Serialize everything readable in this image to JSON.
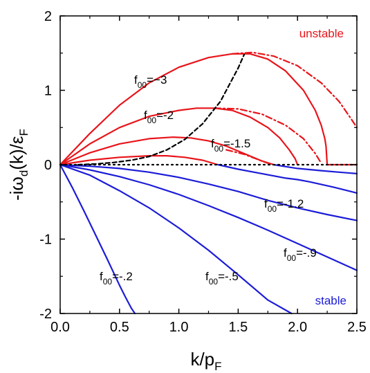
{
  "chart_data": {
    "type": "line",
    "xlim": [
      0,
      2.5
    ],
    "ylim": [
      -2,
      2
    ],
    "x_ticks": [
      "0.0",
      "0.5",
      "1.0",
      "1.5",
      "2.0",
      "2.5"
    ],
    "y_ticks": [
      "-2",
      "-1",
      "0",
      "1",
      "2"
    ],
    "xlabel": {
      "main": "k/p",
      "sub": "F"
    },
    "ylabel": {
      "pre": "-i",
      "omega": "ω",
      "sub": "d",
      "mid": "(k)/",
      "eps": "ε",
      "eps_sub": "F"
    },
    "region_labels": {
      "unstable": "unstable",
      "stable": "stable"
    },
    "colors": {
      "unstable": "#e8141a",
      "stable": "#1c1cd8",
      "reference": "#000000"
    },
    "grid": false,
    "series": [
      {
        "label": {
          "pre": "f",
          "sub": "00",
          "post": "=−3"
        },
        "color": "#e8141a",
        "style": "solid",
        "x": [
          0,
          0.25,
          0.5,
          0.75,
          1.0,
          1.25,
          1.45,
          1.6,
          1.75,
          1.9,
          2.05,
          2.15,
          2.2,
          2.23,
          2.24,
          2.25,
          2.5
        ],
        "y": [
          0,
          0.42,
          0.8,
          1.1,
          1.31,
          1.44,
          1.49,
          1.49,
          1.42,
          1.26,
          1.0,
          0.73,
          0.53,
          0.35,
          0.25,
          0,
          0
        ]
      },
      {
        "color": "#e8141a",
        "style": "dashdot",
        "x": [
          1.45,
          1.62,
          1.8,
          2.0,
          2.2,
          2.35,
          2.45,
          2.5
        ],
        "y": [
          1.49,
          1.51,
          1.46,
          1.33,
          1.1,
          0.85,
          0.62,
          0.5
        ]
      },
      {
        "label": {
          "pre": "f",
          "sub": "00",
          "post": "=-2"
        },
        "color": "#e8141a",
        "style": "solid",
        "x": [
          0,
          0.25,
          0.5,
          0.75,
          1.0,
          1.15,
          1.3,
          1.45,
          1.6,
          1.75,
          1.85,
          1.93,
          1.98,
          2.0
        ],
        "y": [
          0,
          0.28,
          0.5,
          0.65,
          0.73,
          0.76,
          0.76,
          0.73,
          0.64,
          0.5,
          0.36,
          0.2,
          0.08,
          0
        ]
      },
      {
        "color": "#e8141a",
        "style": "dashdot",
        "x": [
          1.3,
          1.5,
          1.7,
          1.9,
          2.05,
          2.15,
          2.2
        ],
        "y": [
          0.76,
          0.75,
          0.68,
          0.53,
          0.35,
          0.15,
          0.02
        ]
      },
      {
        "label": {
          "pre": "f",
          "sub": "00",
          "post": "=-1.5"
        },
        "color": "#e8141a",
        "style": "solid",
        "x": [
          0,
          0.25,
          0.5,
          0.75,
          0.95,
          1.1,
          1.25,
          1.4,
          1.55,
          1.7,
          1.8
        ],
        "y": [
          0,
          0.16,
          0.28,
          0.35,
          0.37,
          0.36,
          0.32,
          0.25,
          0.15,
          0.05,
          0
        ]
      },
      {
        "color": "#e8141a",
        "style": "dashdot",
        "x": [
          1.4,
          1.55,
          1.65,
          1.75
        ],
        "y": [
          0.2,
          0.14,
          0.08,
          0.02
        ]
      },
      {
        "color": "#e8141a",
        "style": "solid",
        "x": [
          0,
          0.25,
          0.5,
          0.75,
          0.9,
          1.05,
          1.2,
          1.33
        ],
        "y": [
          0,
          0.06,
          0.1,
          0.12,
          0.12,
          0.1,
          0.06,
          0
        ]
      },
      {
        "color": "#1c1cd8",
        "style": "solid",
        "x": [
          1.8,
          2.0,
          2.2,
          2.35,
          2.5
        ],
        "y": [
          0,
          -0.05,
          -0.08,
          -0.1,
          -0.12
        ]
      },
      {
        "color": "#1c1cd8",
        "style": "solid",
        "x": [
          1.33,
          1.5,
          1.7,
          1.9,
          2.0,
          2.1,
          2.3,
          2.5
        ],
        "y": [
          0,
          -0.06,
          -0.12,
          -0.18,
          -0.2,
          -0.23,
          -0.3,
          -0.38
        ]
      },
      {
        "label": {
          "pre": "f",
          "sub": "00",
          "post": "=-1.2"
        },
        "color": "#1c1cd8",
        "style": "solid",
        "x": [
          0,
          0.25,
          0.5,
          0.75,
          1.0,
          1.25,
          1.5,
          1.75,
          2.0,
          2.25,
          2.5
        ],
        "y": [
          0,
          -0.02,
          -0.05,
          -0.1,
          -0.17,
          -0.26,
          -0.36,
          -0.48,
          -0.58,
          -0.67,
          -0.75
        ]
      },
      {
        "label": {
          "pre": "f",
          "sub": "00",
          "post": "=-.9"
        },
        "color": "#1c1cd8",
        "style": "solid",
        "x": [
          0,
          0.25,
          0.5,
          0.75,
          1.0,
          1.25,
          1.5,
          1.75,
          2.0,
          2.25,
          2.5
        ],
        "y": [
          0,
          -0.07,
          -0.16,
          -0.27,
          -0.4,
          -0.55,
          -0.71,
          -0.88,
          -1.06,
          -1.24,
          -1.42
        ]
      },
      {
        "label": {
          "pre": "f",
          "sub": "00",
          "post": "=-.5"
        },
        "color": "#1c1cd8",
        "style": "solid",
        "x": [
          0,
          0.25,
          0.5,
          0.75,
          1.0,
          1.25,
          1.5,
          1.75,
          1.95
        ],
        "y": [
          0,
          -0.14,
          -0.35,
          -0.58,
          -0.85,
          -1.15,
          -1.48,
          -1.82,
          -2.0
        ]
      },
      {
        "label": {
          "pre": "f",
          "sub": "00",
          "post": "=-.2"
        },
        "color": "#1c1cd8",
        "style": "solid",
        "x": [
          0,
          0.1,
          0.2,
          0.3,
          0.4,
          0.5,
          0.55,
          0.6,
          0.63
        ],
        "y": [
          0,
          -0.3,
          -0.62,
          -0.95,
          -1.28,
          -1.62,
          -1.78,
          -1.93,
          -2.0
        ]
      },
      {
        "color": "#000000",
        "style": "dashed",
        "x": [
          0.15,
          0.3,
          0.45,
          0.6,
          0.75,
          0.9,
          1.05,
          1.2,
          1.35,
          1.5,
          1.55
        ],
        "y": [
          0,
          0.01,
          0.03,
          0.06,
          0.11,
          0.2,
          0.34,
          0.55,
          0.85,
          1.3,
          1.48
        ]
      },
      {
        "color": "#000000",
        "style": "dotted",
        "x": [
          0,
          2.5
        ],
        "y": [
          0,
          0
        ]
      }
    ]
  }
}
